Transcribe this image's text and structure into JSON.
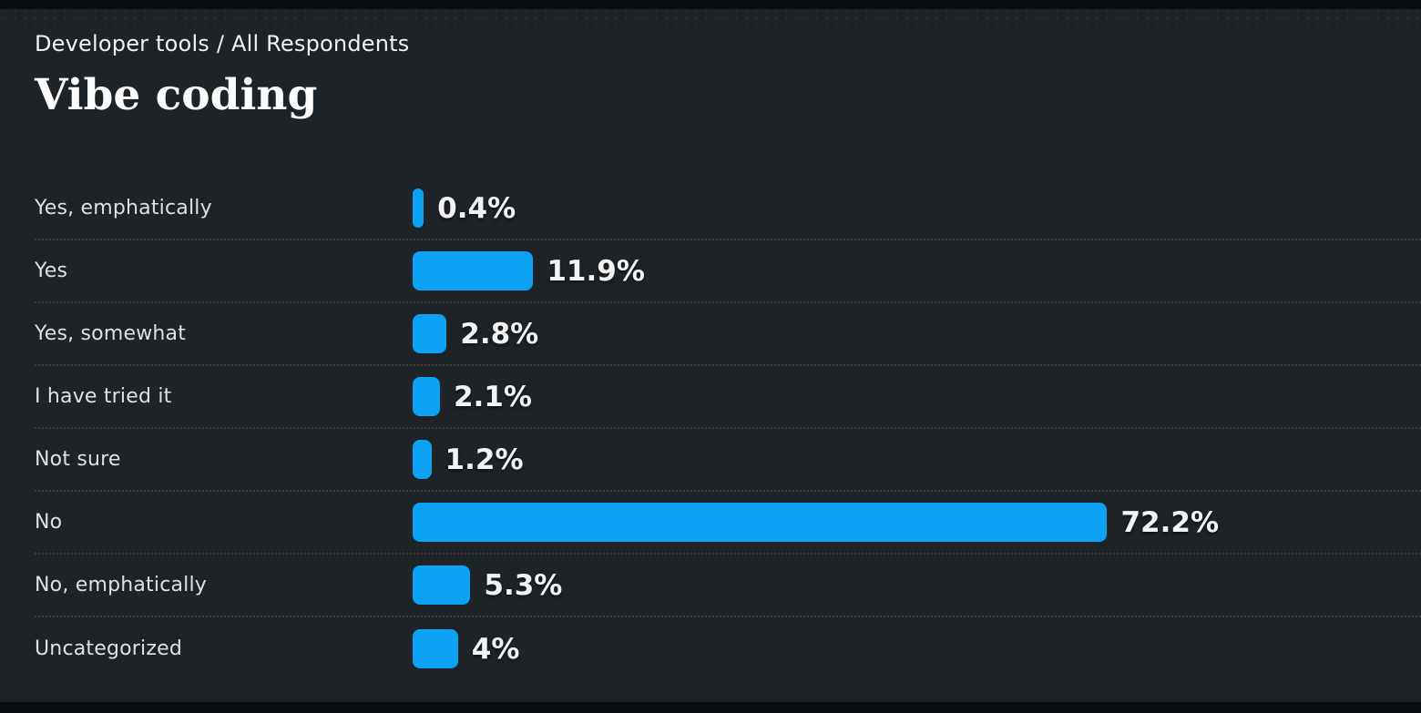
{
  "header": {
    "breadcrumb": "Developer tools / All Respondents",
    "title": "Vibe coding"
  },
  "chart_data": {
    "type": "bar",
    "orientation": "horizontal",
    "title": "Vibe coding",
    "subtitle": "Developer tools / All Respondents",
    "categories": [
      "Yes, emphatically",
      "Yes",
      "Yes, somewhat",
      "I have tried it",
      "Not sure",
      "No",
      "No, emphatically",
      "Uncategorized"
    ],
    "values": [
      0.4,
      11.9,
      2.8,
      2.1,
      1.2,
      72.2,
      5.3,
      4
    ],
    "value_labels": [
      "0.4%",
      "11.9%",
      "2.8%",
      "2.1%",
      "1.2%",
      "72.2%",
      "5.3%",
      "4%"
    ],
    "xlim": [
      0,
      100
    ],
    "legend": "none",
    "grid": "dotted-row-separators",
    "bar_color": "#0da1f4",
    "background_color": "#1e2327",
    "separator_color": "#4a4336",
    "label_color": "#e0e0e0",
    "value_color": "#f3f3f3"
  }
}
